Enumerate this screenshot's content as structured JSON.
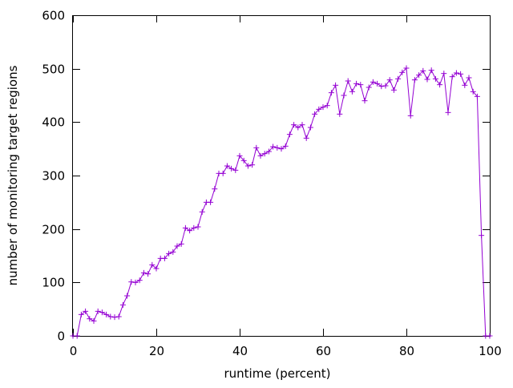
{
  "chart_data": {
    "type": "line",
    "title": "",
    "xlabel": "runtime (percent)",
    "ylabel": "number of monitoring target regions",
    "xlim": [
      0,
      100
    ],
    "ylim": [
      0,
      600
    ],
    "xticks": [
      0,
      20,
      40,
      60,
      80,
      100
    ],
    "yticks": [
      0,
      100,
      200,
      300,
      400,
      500,
      600
    ],
    "grid": false,
    "legend": "none",
    "marker": "plus",
    "color": "#9400d3",
    "x": [
      0,
      1,
      2,
      3,
      4,
      5,
      6,
      7,
      8,
      9,
      10,
      11,
      12,
      13,
      14,
      15,
      16,
      17,
      18,
      19,
      20,
      21,
      22,
      23,
      24,
      25,
      26,
      27,
      28,
      29,
      30,
      31,
      32,
      33,
      34,
      35,
      36,
      37,
      38,
      39,
      40,
      41,
      42,
      43,
      44,
      45,
      46,
      47,
      48,
      49,
      50,
      51,
      52,
      53,
      54,
      55,
      56,
      57,
      58,
      59,
      60,
      61,
      62,
      63,
      64,
      65,
      66,
      67,
      68,
      69,
      70,
      71,
      72,
      73,
      74,
      75,
      76,
      77,
      78,
      79,
      80,
      81,
      82,
      83,
      84,
      85,
      86,
      87,
      88,
      89,
      90,
      91,
      92,
      93,
      94,
      95,
      96,
      97,
      98,
      99,
      100
    ],
    "y": [
      0,
      0,
      40,
      46,
      32,
      28,
      46,
      44,
      40,
      36,
      35,
      36,
      58,
      75,
      101,
      100,
      104,
      118,
      116,
      133,
      126,
      145,
      145,
      154,
      157,
      168,
      172,
      202,
      197,
      202,
      204,
      232,
      250,
      250,
      275,
      304,
      304,
      318,
      313,
      310,
      337,
      328,
      318,
      320,
      352,
      337,
      341,
      345,
      354,
      352,
      350,
      355,
      377,
      395,
      390,
      395,
      370,
      390,
      415,
      424,
      428,
      431,
      455,
      469,
      415,
      450,
      477,
      457,
      472,
      470,
      440,
      465,
      475,
      472,
      467,
      468,
      479,
      460,
      481,
      493,
      501,
      412,
      479,
      488,
      496,
      480,
      497,
      481,
      470,
      491,
      418,
      485,
      492,
      490,
      469,
      483,
      457,
      448,
      188,
      0,
      0
    ]
  }
}
